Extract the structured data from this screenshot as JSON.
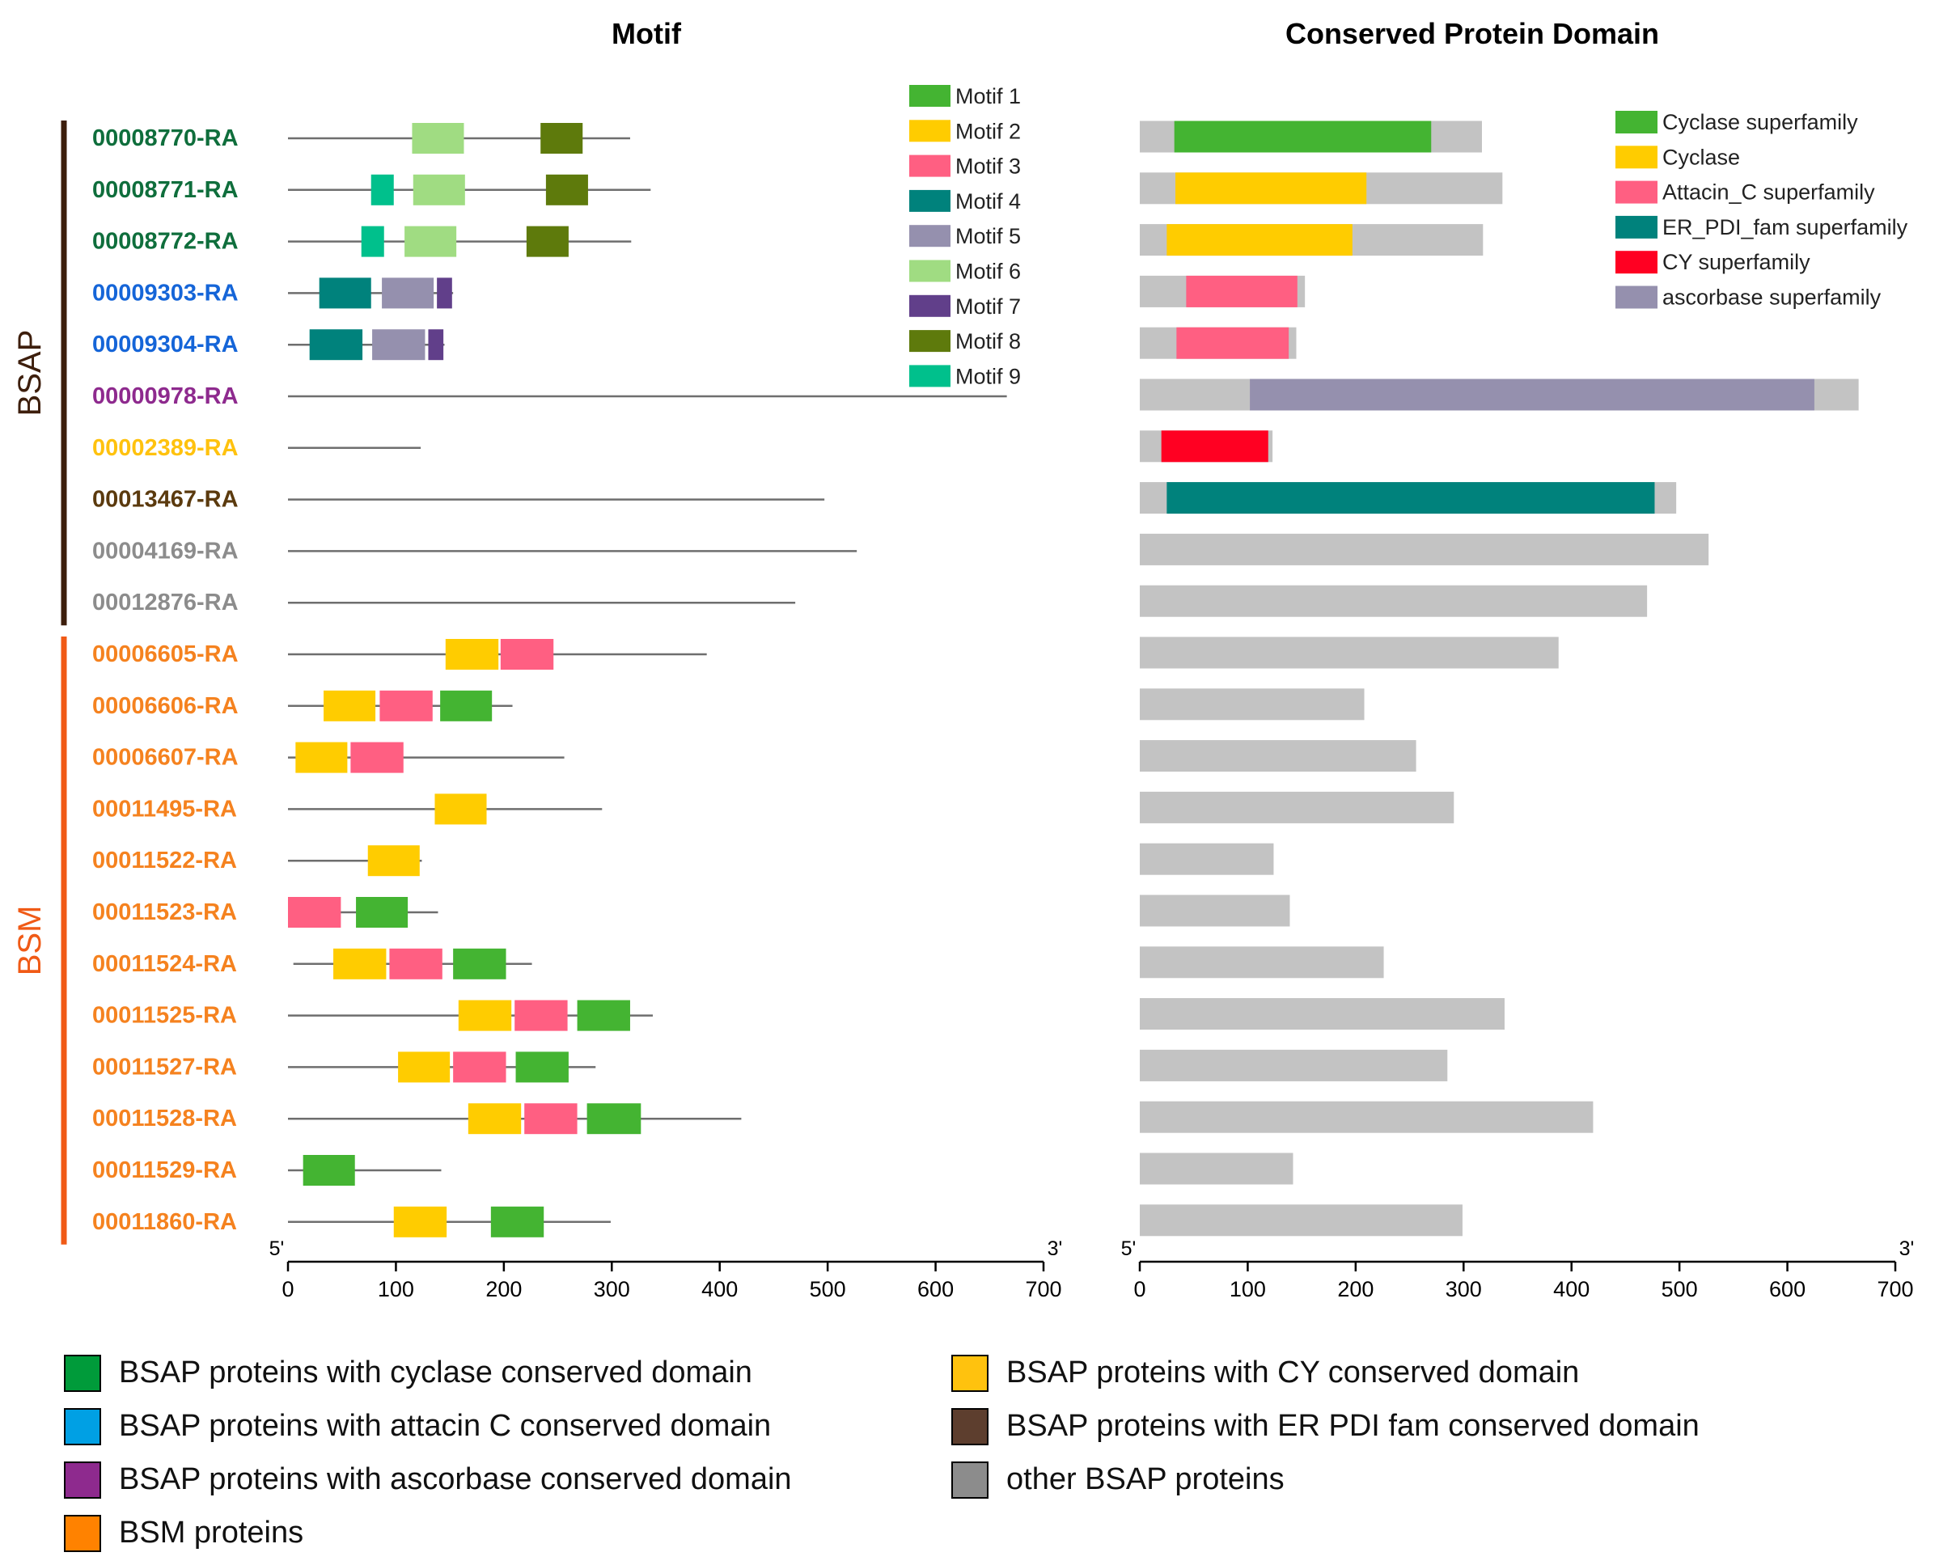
{
  "chart_data": {
    "type": "gene-structure",
    "panels": {
      "motif": {
        "title": "Motif",
        "axis_start_label": "5'",
        "axis_end_label": "3'",
        "xlim": [
          0,
          700
        ],
        "ticks": [
          0,
          100,
          200,
          300,
          400,
          500,
          600,
          700
        ]
      },
      "domain": {
        "title": "Conserved Protein Domain",
        "axis_start_label": "5'",
        "axis_end_label": "3'",
        "xlim": [
          0,
          700
        ],
        "ticks": [
          0,
          100,
          200,
          300,
          400,
          500,
          600,
          700
        ]
      }
    },
    "groups": [
      {
        "label": "BSAP",
        "color": "#3d1e0c",
        "first_row": 0,
        "last_row": 9
      },
      {
        "label": "BSM",
        "color": "#f05a16",
        "first_row": 10,
        "last_row": 21
      }
    ],
    "motif_types": [
      {
        "id": 1,
        "label": "Motif 1",
        "color": "#44b432"
      },
      {
        "id": 2,
        "label": "Motif 2",
        "color": "#ffcc00"
      },
      {
        "id": 3,
        "label": "Motif 3",
        "color": "#ff5f82"
      },
      {
        "id": 4,
        "label": "Motif 4",
        "color": "#00827c"
      },
      {
        "id": 5,
        "label": "Motif 5",
        "color": "#9590ae"
      },
      {
        "id": 6,
        "label": "Motif 6",
        "color": "#a0dc82"
      },
      {
        "id": 7,
        "label": "Motif 7",
        "color": "#613f8a"
      },
      {
        "id": 8,
        "label": "Motif 8",
        "color": "#5e7a0c"
      },
      {
        "id": 9,
        "label": "Motif 9",
        "color": "#00c08c"
      }
    ],
    "domain_types": [
      {
        "label": "Cyclase superfamily",
        "color": "#44b432"
      },
      {
        "label": "Cyclase",
        "color": "#ffcc00"
      },
      {
        "label": "Attacin_C superfamily",
        "color": "#ff5f82"
      },
      {
        "label": "ER_PDI_fam superfamily",
        "color": "#00827c"
      },
      {
        "label": "CY superfamily",
        "color": "#ff0022"
      },
      {
        "label": "ascorbase superfamily",
        "color": "#9590ae"
      }
    ],
    "protein_background_color": "#c3c3c3",
    "proteins": [
      {
        "name": "00008770-RA",
        "color": "#0f6e3c",
        "length": 317,
        "line_start": 0,
        "motifs": [
          {
            "motif": 6,
            "start": 115,
            "end": 163
          },
          {
            "motif": 8,
            "start": 234,
            "end": 273
          }
        ],
        "domains": [
          {
            "label": "Cyclase superfamily",
            "start": 32,
            "end": 270
          }
        ]
      },
      {
        "name": "00008771-RA",
        "color": "#0f6e3c",
        "length": 336,
        "line_start": 0,
        "motifs": [
          {
            "motif": 9,
            "start": 77,
            "end": 98
          },
          {
            "motif": 6,
            "start": 116,
            "end": 164
          },
          {
            "motif": 8,
            "start": 239,
            "end": 278
          }
        ],
        "domains": [
          {
            "label": "Cyclase",
            "start": 33,
            "end": 210
          }
        ]
      },
      {
        "name": "00008772-RA",
        "color": "#0f6e3c",
        "length": 318,
        "line_start": 0,
        "motifs": [
          {
            "motif": 9,
            "start": 68,
            "end": 89
          },
          {
            "motif": 6,
            "start": 108,
            "end": 156
          },
          {
            "motif": 8,
            "start": 221,
            "end": 260
          }
        ],
        "domains": [
          {
            "label": "Cyclase",
            "start": 25,
            "end": 197
          }
        ]
      },
      {
        "name": "00009303-RA",
        "color": "#1565d8",
        "length": 153,
        "line_start": 0,
        "motifs": [
          {
            "motif": 4,
            "start": 29,
            "end": 77
          },
          {
            "motif": 5,
            "start": 87,
            "end": 135
          },
          {
            "motif": 7,
            "start": 138,
            "end": 152
          }
        ],
        "domains": [
          {
            "label": "Attacin_C superfamily",
            "start": 43,
            "end": 146
          }
        ]
      },
      {
        "name": "00009304-RA",
        "color": "#1565d8",
        "length": 145,
        "line_start": 0,
        "motifs": [
          {
            "motif": 4,
            "start": 20,
            "end": 69
          },
          {
            "motif": 5,
            "start": 78,
            "end": 127
          },
          {
            "motif": 7,
            "start": 130,
            "end": 144
          }
        ],
        "domains": [
          {
            "label": "Attacin_C superfamily",
            "start": 34,
            "end": 138
          }
        ]
      },
      {
        "name": "00000978-RA",
        "color": "#8e2a8e",
        "length": 666,
        "line_start": 0,
        "motifs": [],
        "domains": [
          {
            "label": "ascorbase superfamily",
            "start": 102,
            "end": 625
          }
        ]
      },
      {
        "name": "00002389-RA",
        "color": "#ffc20e",
        "length": 123,
        "line_start": 0,
        "motifs": [],
        "domains": [
          {
            "label": "CY superfamily",
            "start": 20,
            "end": 119
          }
        ]
      },
      {
        "name": "00013467-RA",
        "color": "#5b3a0e",
        "length": 497,
        "line_start": 0,
        "motifs": [],
        "domains": [
          {
            "label": "ER_PDI_fam superfamily",
            "start": 25,
            "end": 477
          }
        ]
      },
      {
        "name": "00004169-RA",
        "color": "#8c8c8c",
        "length": 527,
        "line_start": 0,
        "motifs": [],
        "domains": []
      },
      {
        "name": "00012876-RA",
        "color": "#8c8c8c",
        "length": 470,
        "line_start": 0,
        "motifs": [],
        "domains": []
      },
      {
        "name": "00006605-RA",
        "color": "#f5821f",
        "length": 388,
        "line_start": 0,
        "motifs": [
          {
            "motif": 2,
            "start": 146,
            "end": 195
          },
          {
            "motif": 3,
            "start": 197,
            "end": 246
          }
        ],
        "domains": []
      },
      {
        "name": "00006606-RA",
        "color": "#f5821f",
        "length": 208,
        "line_start": 0,
        "motifs": [
          {
            "motif": 2,
            "start": 33,
            "end": 81
          },
          {
            "motif": 3,
            "start": 85,
            "end": 134
          },
          {
            "motif": 1,
            "start": 141,
            "end": 189
          }
        ],
        "domains": []
      },
      {
        "name": "00006607-RA",
        "color": "#f5821f",
        "length": 256,
        "line_start": 0,
        "motifs": [
          {
            "motif": 2,
            "start": 7,
            "end": 55
          },
          {
            "motif": 3,
            "start": 58,
            "end": 107
          }
        ],
        "domains": []
      },
      {
        "name": "00011495-RA",
        "color": "#f5821f",
        "length": 291,
        "line_start": 0,
        "motifs": [
          {
            "motif": 2,
            "start": 136,
            "end": 184
          }
        ],
        "domains": []
      },
      {
        "name": "00011522-RA",
        "color": "#f5821f",
        "length": 124,
        "line_start": 0,
        "motifs": [
          {
            "motif": 2,
            "start": 74,
            "end": 122
          }
        ],
        "domains": []
      },
      {
        "name": "00011523-RA",
        "color": "#f5821f",
        "length": 139,
        "line_start": 0,
        "motifs": [
          {
            "motif": 3,
            "start": 0,
            "end": 49
          },
          {
            "motif": 1,
            "start": 63,
            "end": 111
          }
        ],
        "domains": []
      },
      {
        "name": "00011524-RA",
        "color": "#f5821f",
        "length": 226,
        "line_start": 5,
        "motifs": [
          {
            "motif": 2,
            "start": 42,
            "end": 91
          },
          {
            "motif": 3,
            "start": 94,
            "end": 143
          },
          {
            "motif": 1,
            "start": 153,
            "end": 202
          }
        ],
        "domains": []
      },
      {
        "name": "00011525-RA",
        "color": "#f5821f",
        "length": 338,
        "line_start": 0,
        "motifs": [
          {
            "motif": 2,
            "start": 158,
            "end": 207
          },
          {
            "motif": 3,
            "start": 210,
            "end": 259
          },
          {
            "motif": 1,
            "start": 268,
            "end": 317
          }
        ],
        "domains": []
      },
      {
        "name": "00011527-RA",
        "color": "#f5821f",
        "length": 285,
        "line_start": 0,
        "motifs": [
          {
            "motif": 2,
            "start": 102,
            "end": 150
          },
          {
            "motif": 3,
            "start": 153,
            "end": 202
          },
          {
            "motif": 1,
            "start": 211,
            "end": 260
          }
        ],
        "domains": []
      },
      {
        "name": "00011528-RA",
        "color": "#f5821f",
        "length": 420,
        "line_start": 0,
        "motifs": [
          {
            "motif": 2,
            "start": 167,
            "end": 216
          },
          {
            "motif": 3,
            "start": 219,
            "end": 268
          },
          {
            "motif": 1,
            "start": 277,
            "end": 327
          }
        ],
        "domains": []
      },
      {
        "name": "00011529-RA",
        "color": "#f5821f",
        "length": 142,
        "line_start": 0,
        "motifs": [
          {
            "motif": 1,
            "start": 14,
            "end": 62
          }
        ],
        "domains": []
      },
      {
        "name": "00011860-RA",
        "color": "#f5821f",
        "length": 299,
        "line_start": 0,
        "motifs": [
          {
            "motif": 2,
            "start": 98,
            "end": 147
          },
          {
            "motif": 1,
            "start": 188,
            "end": 237
          }
        ],
        "domains": []
      }
    ],
    "bottom_legend": [
      {
        "label": "BSAP proteins with cyclase conserved domain",
        "color": "#009b3a"
      },
      {
        "label": "BSAP proteins with attacin C conserved domain",
        "color": "#00a0e4"
      },
      {
        "label": "BSAP proteins with ascorbase conserved domain",
        "color": "#8e2a8e"
      },
      {
        "label": "BSM proteins",
        "color": "#ff8200"
      },
      {
        "label": "BSAP proteins with CY conserved domain",
        "color": "#ffc20e"
      },
      {
        "label": "BSAP proteins with ER PDI fam conserved domain",
        "color": "#5d3e2e"
      },
      {
        "label": "other BSAP proteins",
        "color": "#8c8c8c"
      }
    ]
  }
}
